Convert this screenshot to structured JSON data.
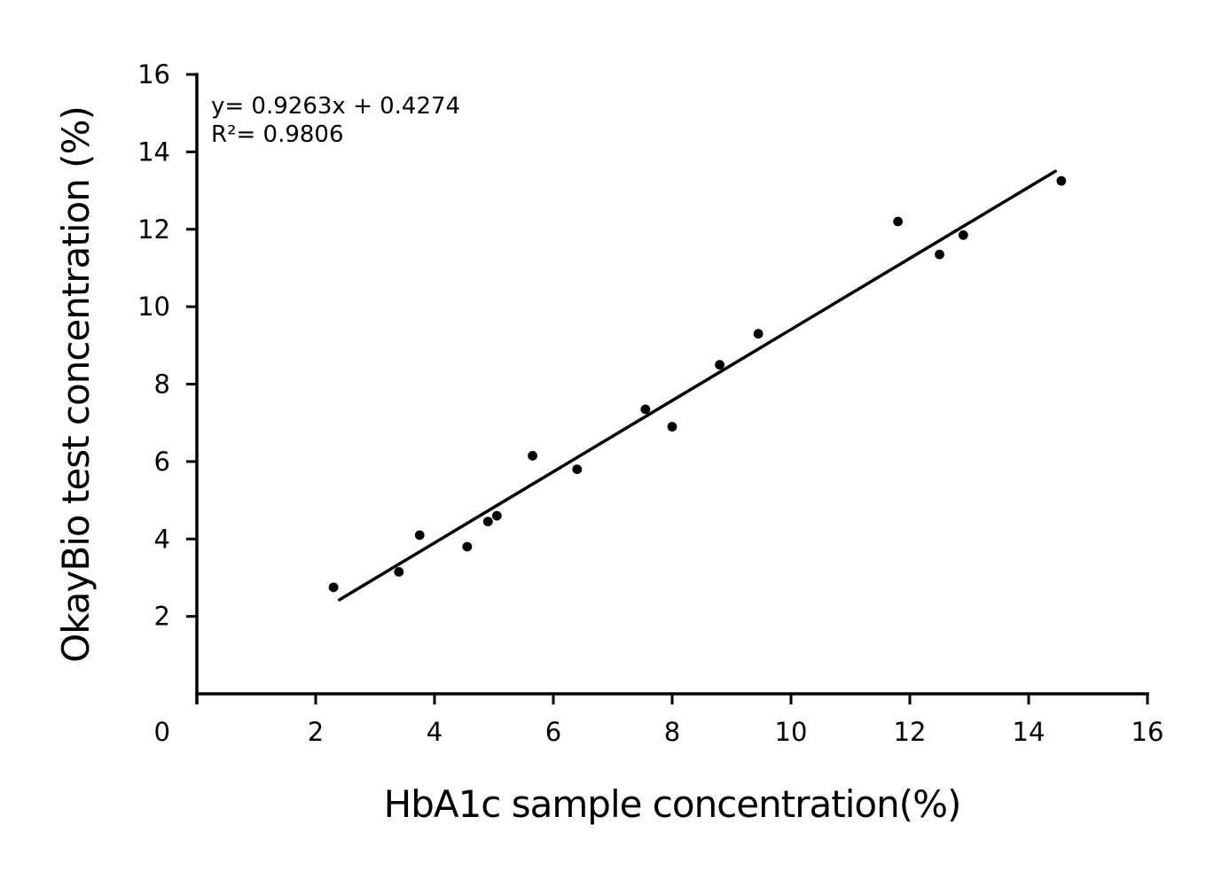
{
  "chart_data": {
    "type": "scatter",
    "title": "",
    "xlabel": "HbA1c sample concentration(%)",
    "ylabel": "OkayBio test concentration (%)",
    "xlim": [
      0,
      16
    ],
    "ylim": [
      0,
      16
    ],
    "xticks": [
      0,
      2,
      4,
      6,
      8,
      10,
      12,
      14,
      16
    ],
    "yticks": [
      2,
      4,
      6,
      8,
      10,
      12,
      14,
      16
    ],
    "grid": false,
    "legend": "none",
    "axis_color": "#000000",
    "marker": {
      "shape": "circle",
      "color": "#000000"
    },
    "trendline": {
      "color": "#000000",
      "x_start": 2.4,
      "y_start": 2.43,
      "x_end": 14.45,
      "y_end": 13.5
    },
    "annotation": {
      "equation": "y= 0.9263x + 0.4274",
      "r_squared": "R²= 0.9806"
    },
    "points": [
      {
        "x": 2.3,
        "y": 2.75
      },
      {
        "x": 3.4,
        "y": 3.15
      },
      {
        "x": 3.75,
        "y": 4.1
      },
      {
        "x": 4.55,
        "y": 3.8
      },
      {
        "x": 4.9,
        "y": 4.45
      },
      {
        "x": 5.05,
        "y": 4.6
      },
      {
        "x": 5.65,
        "y": 6.15
      },
      {
        "x": 6.4,
        "y": 5.8
      },
      {
        "x": 7.55,
        "y": 7.35
      },
      {
        "x": 8.0,
        "y": 6.9
      },
      {
        "x": 8.8,
        "y": 8.5
      },
      {
        "x": 9.45,
        "y": 9.3
      },
      {
        "x": 11.8,
        "y": 12.2
      },
      {
        "x": 12.5,
        "y": 11.35
      },
      {
        "x": 12.9,
        "y": 11.85
      },
      {
        "x": 14.55,
        "y": 13.25
      }
    ]
  }
}
